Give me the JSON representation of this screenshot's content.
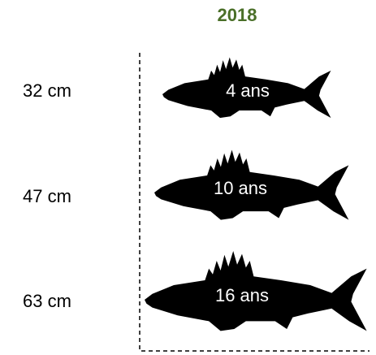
{
  "title": "2018",
  "rows": [
    {
      "length": "32 cm",
      "age": "4 ans"
    },
    {
      "length": "47 cm",
      "age": "10 ans"
    },
    {
      "length": "63 cm",
      "age": "16 ans"
    }
  ]
}
